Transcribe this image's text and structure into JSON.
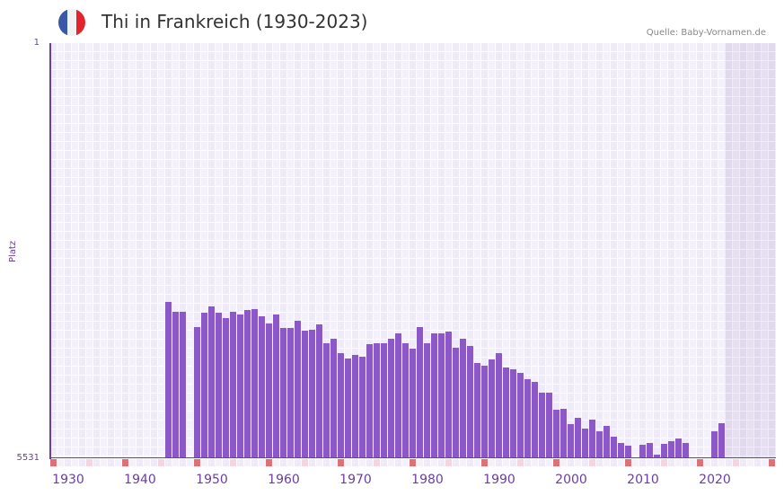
{
  "header": {
    "title": "Thi in Frankreich (1930-2023)",
    "source": "Quelle: Baby-Vornamen.de",
    "flag_colors": [
      "#3a58a8",
      "#f2f2f2",
      "#e4242c"
    ]
  },
  "colors": {
    "bar": "#8c57c6",
    "axis": "#6a3fa0",
    "grid_a": "#efeaf8",
    "grid_b": "#f4f1fb",
    "future_shade": "#e2dced",
    "marker_strong": "#e07078",
    "marker_light": "#f3d6df"
  },
  "chart_data": {
    "type": "bar",
    "title": "Thi in Frankreich (1930-2023)",
    "xlabel": "",
    "ylabel": "Platz",
    "y_inverted": true,
    "ylim": [
      1,
      5531
    ],
    "y_ticks": [
      "1",
      "5531"
    ],
    "x_range": [
      1928,
      2028
    ],
    "x_ticks": [
      "1930",
      "1940",
      "1950",
      "1960",
      "1970",
      "1980",
      "1990",
      "2000",
      "2010",
      "2020"
    ],
    "future_shaded_from": 2022,
    "grid": true,
    "legend": null,
    "categories": [
      1944,
      1945,
      1946,
      1948,
      1949,
      1950,
      1951,
      1952,
      1953,
      1954,
      1955,
      1956,
      1957,
      1958,
      1959,
      1960,
      1961,
      1962,
      1963,
      1964,
      1965,
      1966,
      1967,
      1968,
      1969,
      1970,
      1971,
      1972,
      1973,
      1974,
      1975,
      1976,
      1977,
      1978,
      1979,
      1980,
      1981,
      1982,
      1983,
      1984,
      1985,
      1986,
      1987,
      1988,
      1989,
      1990,
      1991,
      1992,
      1993,
      1994,
      1995,
      1996,
      1997,
      1998,
      1999,
      2000,
      2001,
      2002,
      2003,
      2004,
      2005,
      2006,
      2007,
      2008,
      2010,
      2011,
      2012,
      2013,
      2014,
      2015,
      2016,
      2020,
      2021
    ],
    "values": [
      3448,
      3580,
      3580,
      3783,
      3592,
      3508,
      3592,
      3664,
      3580,
      3616,
      3556,
      3544,
      3640,
      3736,
      3616,
      3795,
      3795,
      3700,
      3831,
      3819,
      3748,
      3999,
      3939,
      4131,
      4202,
      4155,
      4179,
      4011,
      3999,
      3999,
      3939,
      3867,
      3999,
      4071,
      3783,
      3999,
      3867,
      3867,
      3843,
      4059,
      3939,
      4035,
      4262,
      4298,
      4214,
      4131,
      4322,
      4346,
      4394,
      4478,
      4514,
      4657,
      4657,
      4885,
      4873,
      5076,
      4993,
      5136,
      5016,
      5172,
      5100,
      5244,
      5328,
      5364,
      5352,
      5328,
      5483,
      5340,
      5304,
      5268,
      5328,
      5172,
      5064
    ]
  }
}
